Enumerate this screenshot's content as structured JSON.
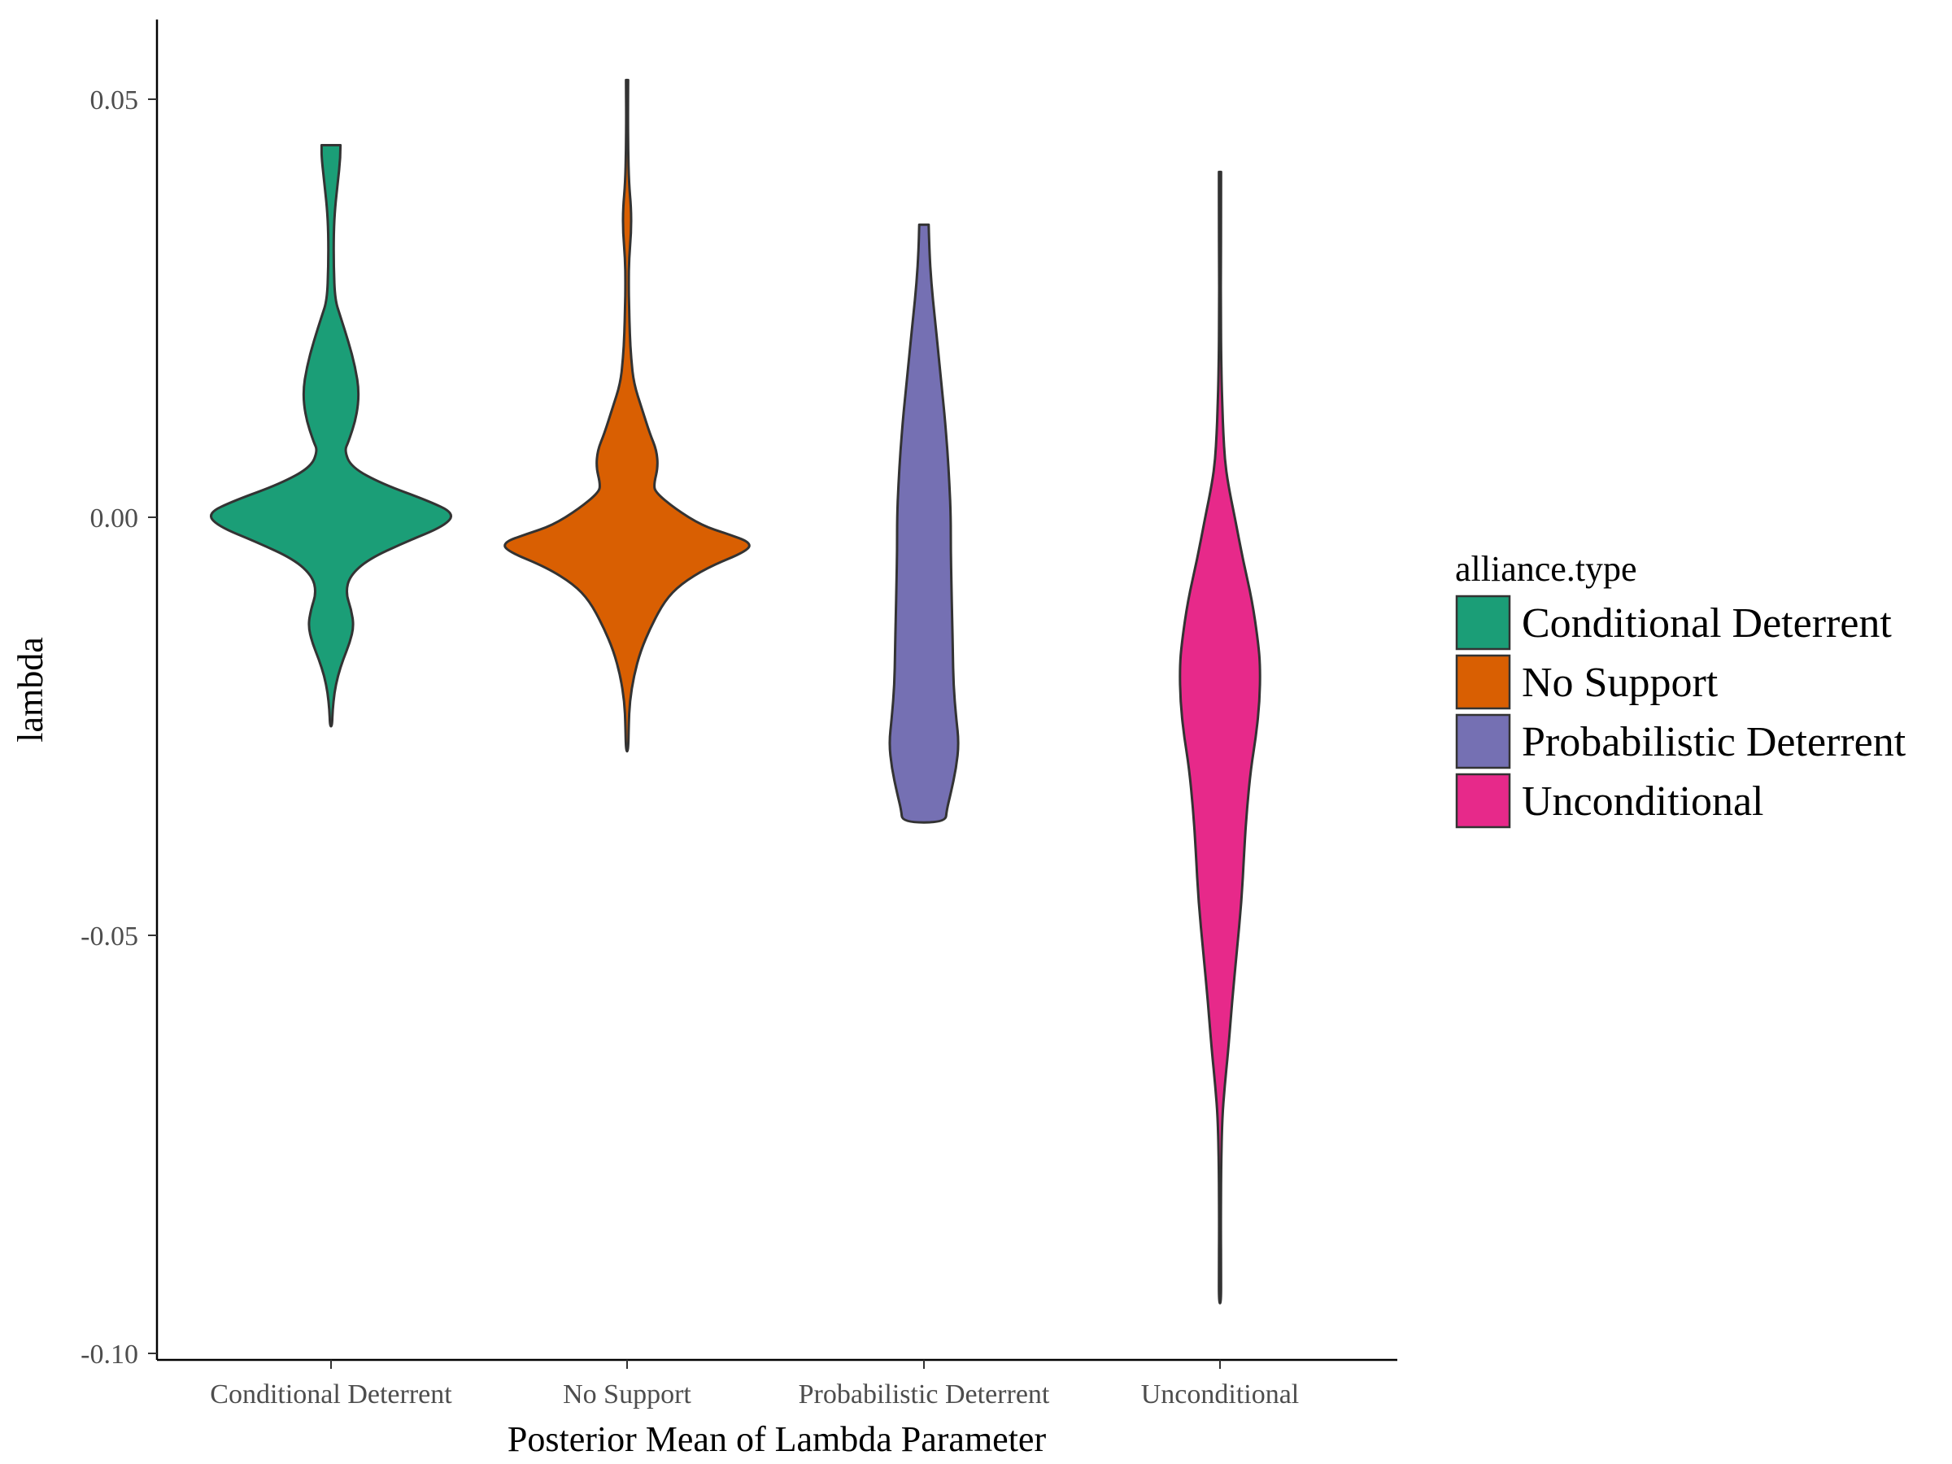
{
  "chart_data": {
    "type": "violin",
    "xlabel": "Posterior Mean of Lambda Parameter",
    "ylabel": "lambda",
    "ylim": [
      -0.1,
      0.06
    ],
    "yticks": [
      {
        "value": 0.05,
        "label": "0.05"
      },
      {
        "value": 0.0,
        "label": "0.00"
      },
      {
        "value": -0.05,
        "label": "-0.05"
      },
      {
        "value": -0.1,
        "label": "-0.10"
      }
    ],
    "categories": [
      "Conditional Deterrent",
      "No Support",
      "Probabilistic Deterrent",
      "Unconditional"
    ],
    "legend": {
      "title": "alliance.type",
      "position": "right",
      "entries": [
        "Conditional Deterrent",
        "No Support",
        "Probabilistic Deterrent",
        "Unconditional"
      ]
    },
    "grid": false,
    "series": [
      {
        "category": "Conditional Deterrent",
        "color": "#1b9e77",
        "min": -0.025,
        "max": 0.0445,
        "density": [
          [
            0.0445,
            0.07
          ],
          [
            0.043,
            0.07
          ],
          [
            0.04,
            0.05
          ],
          [
            0.037,
            0.03
          ],
          [
            0.034,
            0.02
          ],
          [
            0.03,
            0.02
          ],
          [
            0.026,
            0.03
          ],
          [
            0.024,
            0.07
          ],
          [
            0.021,
            0.13
          ],
          [
            0.018,
            0.18
          ],
          [
            0.015,
            0.21
          ],
          [
            0.012,
            0.19
          ],
          [
            0.009,
            0.13
          ],
          [
            0.008,
            0.1
          ],
          [
            0.006,
            0.15
          ],
          [
            0.004,
            0.38
          ],
          [
            0.002,
            0.72
          ],
          [
            0.0005,
            0.92
          ],
          [
            -0.001,
            0.85
          ],
          [
            -0.003,
            0.55
          ],
          [
            -0.005,
            0.28
          ],
          [
            -0.007,
            0.14
          ],
          [
            -0.009,
            0.11
          ],
          [
            -0.011,
            0.15
          ],
          [
            -0.013,
            0.17
          ],
          [
            -0.015,
            0.14
          ],
          [
            -0.017,
            0.09
          ],
          [
            -0.019,
            0.05
          ],
          [
            -0.021,
            0.025
          ],
          [
            -0.023,
            0.012
          ],
          [
            -0.025,
            0.008
          ]
        ]
      },
      {
        "category": "No Support",
        "color": "#d95f02",
        "min": -0.028,
        "max": 0.0523,
        "density": [
          [
            0.0523,
            0.008
          ],
          [
            0.048,
            0.006
          ],
          [
            0.044,
            0.008
          ],
          [
            0.04,
            0.014
          ],
          [
            0.037,
            0.03
          ],
          [
            0.034,
            0.03
          ],
          [
            0.031,
            0.015
          ],
          [
            0.028,
            0.012
          ],
          [
            0.025,
            0.015
          ],
          [
            0.022,
            0.02
          ],
          [
            0.019,
            0.03
          ],
          [
            0.016,
            0.05
          ],
          [
            0.013,
            0.11
          ],
          [
            0.01,
            0.17
          ],
          [
            0.008,
            0.22
          ],
          [
            0.006,
            0.23
          ],
          [
            0.004,
            0.2
          ],
          [
            0.003,
            0.21
          ],
          [
            0.001,
            0.36
          ],
          [
            -0.001,
            0.56
          ],
          [
            -0.002,
            0.75
          ],
          [
            -0.003,
            0.92
          ],
          [
            -0.004,
            0.9
          ],
          [
            -0.006,
            0.6
          ],
          [
            -0.008,
            0.4
          ],
          [
            -0.01,
            0.28
          ],
          [
            -0.013,
            0.18
          ],
          [
            -0.016,
            0.1
          ],
          [
            -0.019,
            0.05
          ],
          [
            -0.022,
            0.02
          ],
          [
            -0.025,
            0.012
          ],
          [
            -0.028,
            0.008
          ]
        ]
      },
      {
        "category": "Probabilistic Deterrent",
        "color": "#7570b3",
        "min": -0.0365,
        "max": 0.035,
        "density": [
          [
            0.035,
            0.035
          ],
          [
            0.032,
            0.04
          ],
          [
            0.028,
            0.055
          ],
          [
            0.024,
            0.08
          ],
          [
            0.02,
            0.105
          ],
          [
            0.016,
            0.13
          ],
          [
            0.012,
            0.155
          ],
          [
            0.008,
            0.175
          ],
          [
            0.004,
            0.19
          ],
          [
            0.0,
            0.2
          ],
          [
            -0.004,
            0.2
          ],
          [
            -0.008,
            0.205
          ],
          [
            -0.012,
            0.21
          ],
          [
            -0.016,
            0.215
          ],
          [
            -0.02,
            0.22
          ],
          [
            -0.024,
            0.24
          ],
          [
            -0.027,
            0.26
          ],
          [
            -0.03,
            0.24
          ],
          [
            -0.033,
            0.2
          ],
          [
            -0.035,
            0.17
          ],
          [
            -0.0365,
            0.16
          ]
        ]
      },
      {
        "category": "Unconditional",
        "color": "#e7298a",
        "min": -0.094,
        "max": 0.0413,
        "density": [
          [
            0.0413,
            0.008
          ],
          [
            0.036,
            0.008
          ],
          [
            0.03,
            0.006
          ],
          [
            0.025,
            0.006
          ],
          [
            0.02,
            0.008
          ],
          [
            0.016,
            0.012
          ],
          [
            0.013,
            0.018
          ],
          [
            0.01,
            0.025
          ],
          [
            0.007,
            0.035
          ],
          [
            0.004,
            0.06
          ],
          [
            0.0,
            0.11
          ],
          [
            -0.005,
            0.17
          ],
          [
            -0.01,
            0.24
          ],
          [
            -0.015,
            0.285
          ],
          [
            -0.018,
            0.3
          ],
          [
            -0.022,
            0.295
          ],
          [
            -0.026,
            0.27
          ],
          [
            -0.03,
            0.23
          ],
          [
            -0.035,
            0.2
          ],
          [
            -0.04,
            0.18
          ],
          [
            -0.046,
            0.16
          ],
          [
            -0.052,
            0.125
          ],
          [
            -0.058,
            0.09
          ],
          [
            -0.064,
            0.06
          ],
          [
            -0.068,
            0.035
          ],
          [
            -0.072,
            0.016
          ],
          [
            -0.078,
            0.008
          ],
          [
            -0.085,
            0.006
          ],
          [
            -0.09,
            0.008
          ],
          [
            -0.094,
            0.008
          ]
        ]
      }
    ]
  }
}
